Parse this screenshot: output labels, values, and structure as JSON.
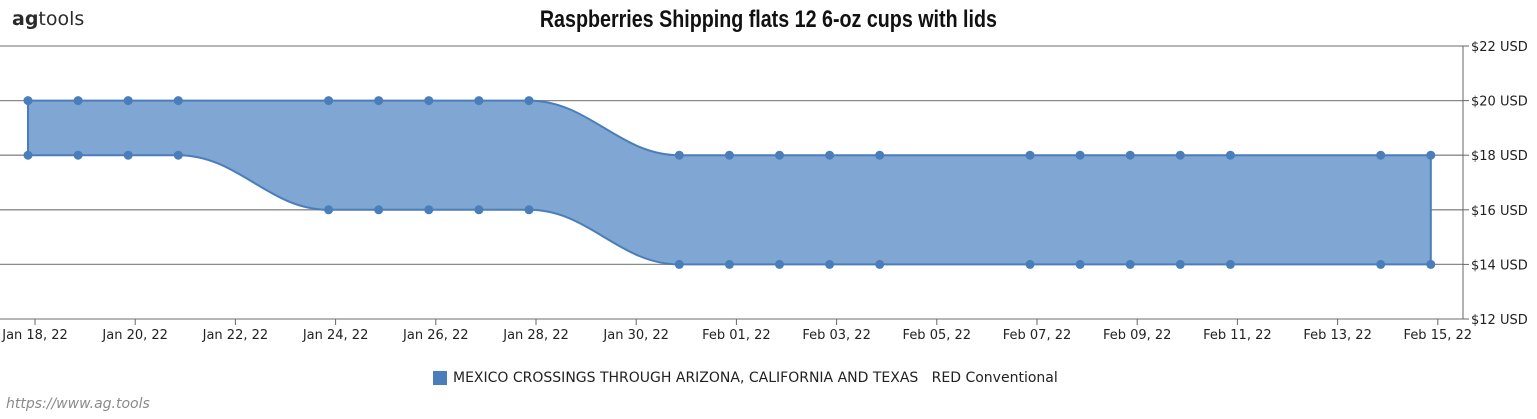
{
  "logo": {
    "ag": "ag",
    "rest": "tools"
  },
  "source": "https://www.ag.tools",
  "chart_data": {
    "type": "area",
    "subtype": "range",
    "title": "Raspberries Shipping  flats 12 6-oz cups with lids",
    "xlabel": "",
    "ylabel": "",
    "x_axis_type": "date",
    "x_ticks": [
      "Jan 18, 22",
      "Jan 20, 22",
      "Jan 22, 22",
      "Jan 24, 22",
      "Jan 26, 22",
      "Jan 28, 22",
      "Jan 30, 22",
      "Feb 01, 22",
      "Feb 03, 22",
      "Feb 05, 22",
      "Feb 07, 22",
      "Feb 09, 22",
      "Feb 11, 22",
      "Feb 13, 22",
      "Feb 15, 22"
    ],
    "y_ticks": [
      "$12 USD",
      "$14 USD",
      "$16 USD",
      "$18 USD",
      "$20 USD",
      "$22 USD"
    ],
    "ylim": [
      12,
      22
    ],
    "y_axis_position": "right",
    "grid": true,
    "legend_position": "bottom",
    "series": [
      {
        "name": "MEXICO CROSSINGS THROUGH ARIZONA, CALIFORNIA AND TEXAS   RED Conventional",
        "color": "#4a7ebb",
        "fill": "#80a6d3",
        "x": [
          "2022-01-18",
          "2022-01-19",
          "2022-01-20",
          "2022-01-21",
          "2022-01-24",
          "2022-01-25",
          "2022-01-26",
          "2022-01-27",
          "2022-01-28",
          "2022-01-31",
          "2022-02-01",
          "2022-02-02",
          "2022-02-03",
          "2022-02-04",
          "2022-02-07",
          "2022-02-08",
          "2022-02-09",
          "2022-02-10",
          "2022-02-11",
          "2022-02-14",
          "2022-02-15"
        ],
        "low": [
          18,
          18,
          18,
          18,
          16,
          16,
          16,
          16,
          16,
          14,
          14,
          14,
          14,
          14,
          14,
          14,
          14,
          14,
          14,
          14,
          14
        ],
        "high": [
          20,
          20,
          20,
          20,
          20,
          20,
          20,
          20,
          20,
          18,
          18,
          18,
          18,
          18,
          18,
          18,
          18,
          18,
          18,
          18,
          18
        ]
      }
    ]
  }
}
